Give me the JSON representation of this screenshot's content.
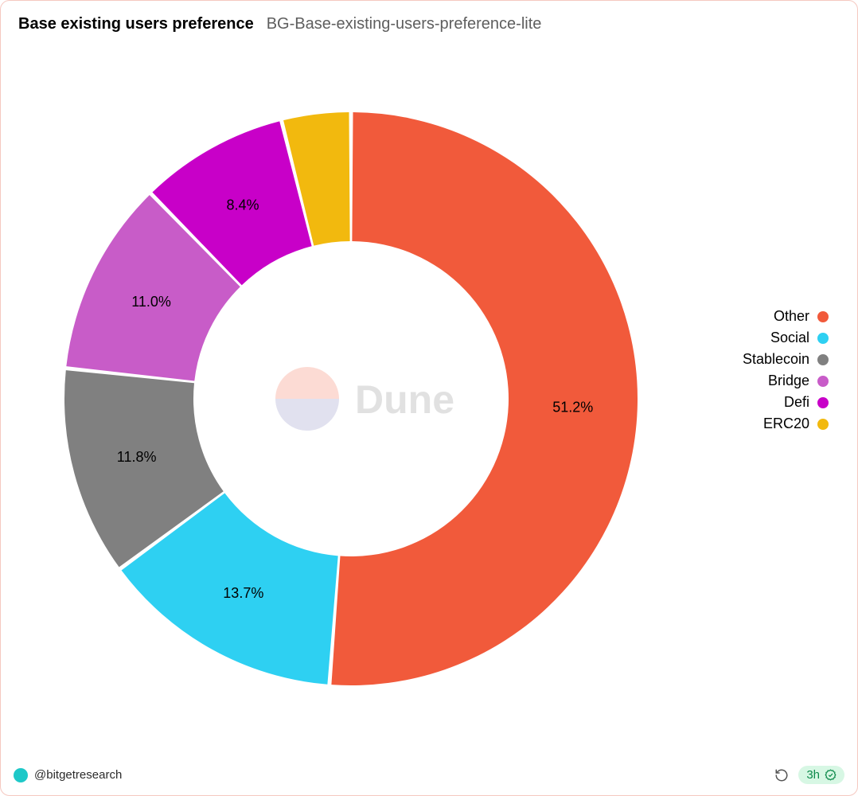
{
  "header": {
    "title": "Base existing users preference",
    "subtitle": "BG-Base-existing-users-preference-lite"
  },
  "chart": {
    "type": "donut",
    "inner_ratio": 0.55,
    "background_color": "#ffffff",
    "label_fontsize": 18,
    "label_color": "#000000",
    "slices": [
      {
        "label": "Other",
        "value": 51.2,
        "display": "51.2%",
        "color": "#f15a3b"
      },
      {
        "label": "Social",
        "value": 13.7,
        "display": "13.7%",
        "color": "#2ed0f2"
      },
      {
        "label": "Stablecoin",
        "value": 11.8,
        "display": "11.8%",
        "color": "#808080"
      },
      {
        "label": "Bridge",
        "value": 11.0,
        "display": "11.0%",
        "color": "#c85cc8"
      },
      {
        "label": "Defi",
        "value": 8.4,
        "display": "8.4%",
        "color": "#c800c8"
      },
      {
        "label": "ERC20",
        "value": 3.9,
        "display": "",
        "color": "#f2b90e"
      }
    ],
    "gap_deg": 0.8,
    "start_angle_deg": 0,
    "watermark": "Dune"
  },
  "legend": {
    "fontsize": 18,
    "swatch_shape": "circle",
    "position": "right"
  },
  "footer": {
    "author_handle": "@bitgetresearch",
    "age_badge": "3h"
  }
}
